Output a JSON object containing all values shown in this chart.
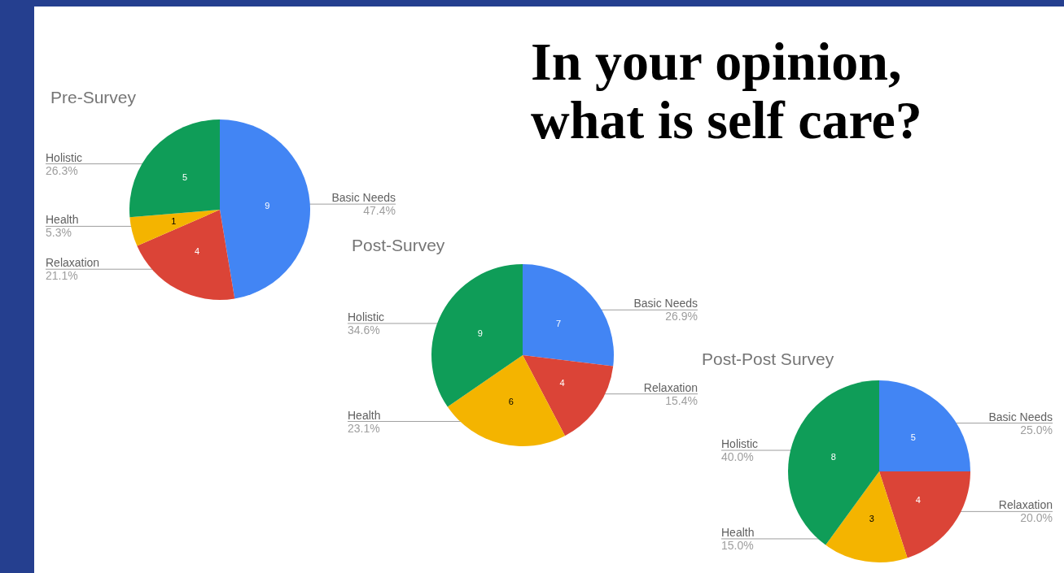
{
  "chart_data": [
    {
      "type": "pie",
      "title": "Pre-Survey",
      "categories": [
        "Basic Needs",
        "Relaxation",
        "Health",
        "Holistic"
      ],
      "values": [
        9,
        4,
        1,
        5
      ],
      "colors": [
        "#4285f4",
        "#db4437",
        "#f4b400",
        "#0f9d58"
      ],
      "data_labels": true,
      "annotations": [
        "In your opinion, what is self care?",
        {
          "text": "47.4%",
          "x": "Basic Needs"
        },
        {
          "text": "21.1%",
          "x": "Relaxation"
        },
        {
          "text": "5.3%",
          "x": "Health"
        },
        {
          "text": "26.3%",
          "x": "Holistic"
        }
      ]
    },
    {
      "type": "pie",
      "title": "Post-Survey",
      "categories": [
        "Basic Needs",
        "Relaxation",
        "Health",
        "Holistic"
      ],
      "values": [
        7,
        4,
        6,
        9
      ],
      "colors": [
        "#4285f4",
        "#db4437",
        "#f4b400",
        "#0f9d58"
      ],
      "data_labels": true,
      "annotations": [
        {
          "text": "26.9%",
          "x": "Basic Needs"
        },
        {
          "text": "15.4%",
          "x": "Relaxation"
        },
        {
          "text": "23.1%",
          "x": "Health"
        },
        {
          "text": "34.6%",
          "x": "Holistic"
        }
      ]
    },
    {
      "type": "pie",
      "title": "Post-Post Survey",
      "categories": [
        "Basic Needs",
        "Relaxation",
        "Health",
        "Holistic"
      ],
      "values": [
        5,
        4,
        3,
        8
      ],
      "colors": [
        "#4285f4",
        "#db4437",
        "#f4b400",
        "#0f9d58"
      ],
      "data_labels": true,
      "annotations": [
        {
          "text": "25.0%",
          "x": "Basic Needs"
        },
        {
          "text": "20.0%",
          "x": "Relaxation"
        },
        {
          "text": "15.0%",
          "x": "Health"
        },
        {
          "text": "40.0%",
          "x": "Holistic"
        }
      ]
    }
  ]
}
